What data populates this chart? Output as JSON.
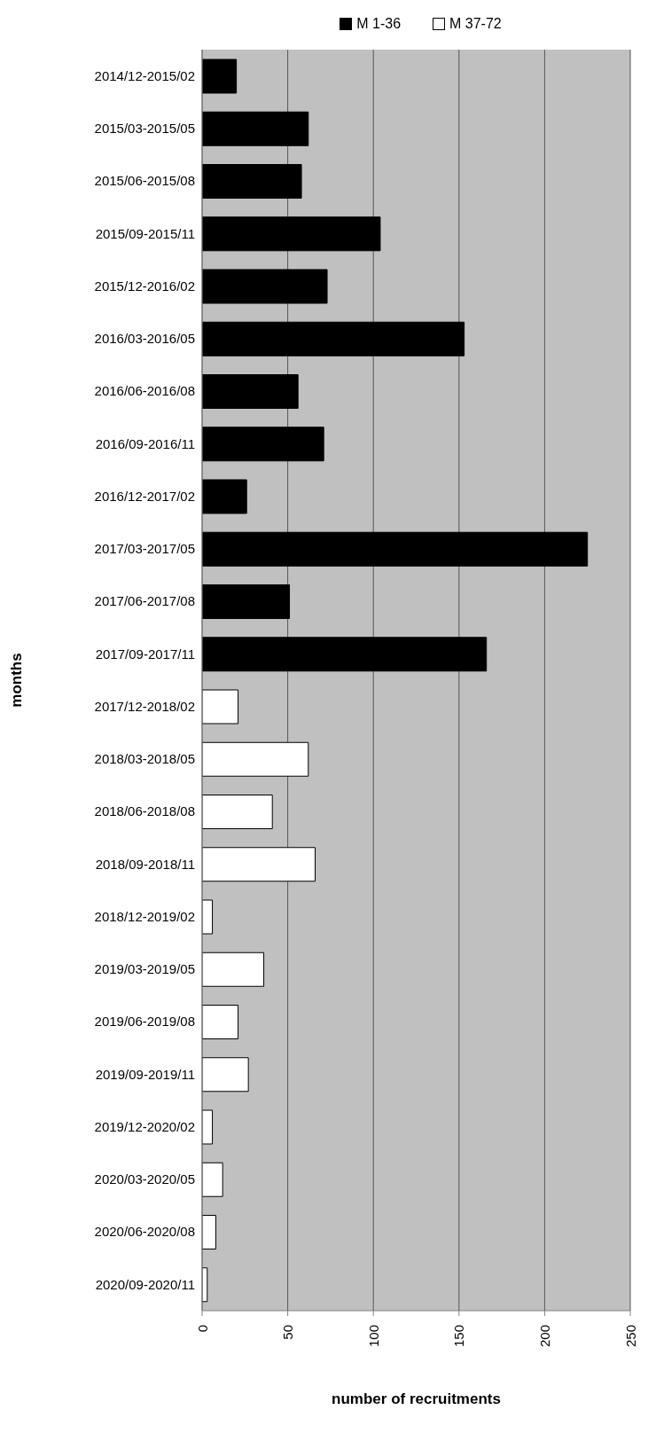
{
  "chart_data": {
    "type": "bar",
    "orientation": "horizontal",
    "stacked": true,
    "xlabel": "number of  recruitments",
    "ylabel": "months",
    "categories": [
      "2014/12-2015/02",
      "2015/03-2015/05",
      "2015/06-2015/08",
      "2015/09-2015/11",
      "2015/12-2016/02",
      "2016/03-2016/05",
      "2016/06-2016/08",
      "2016/09-2016/11",
      "2016/12-2017/02",
      "2017/03-2017/05",
      "2017/06-2017/08",
      "2017/09-2017/11",
      "2017/12-2018/02",
      "2018/03-2018/05",
      "2018/06-2018/08",
      "2018/09-2018/11",
      "2018/12-2019/02",
      "2019/03-2019/05",
      "2019/06-2019/08",
      "2019/09-2019/11",
      "2019/12-2020/02",
      "2020/03-2020/05",
      "2020/06-2020/08",
      "2020/09-2020/11"
    ],
    "series": [
      {
        "name": "M 1-36",
        "color": "#000000",
        "values": [
          20,
          62,
          58,
          104,
          73,
          153,
          56,
          71,
          26,
          225,
          51,
          166,
          null,
          null,
          null,
          null,
          null,
          null,
          null,
          null,
          null,
          null,
          null,
          null
        ]
      },
      {
        "name": "M 37-72",
        "color": "#ffffff",
        "values": [
          null,
          null,
          null,
          null,
          null,
          null,
          null,
          null,
          null,
          null,
          null,
          null,
          21,
          62,
          41,
          66,
          6,
          36,
          21,
          27,
          6,
          12,
          8,
          3
        ]
      }
    ],
    "xlim": [
      0,
      250
    ],
    "xticks": [
      0,
      50,
      100,
      150,
      200,
      250
    ],
    "grid": "x",
    "legend": "top"
  }
}
